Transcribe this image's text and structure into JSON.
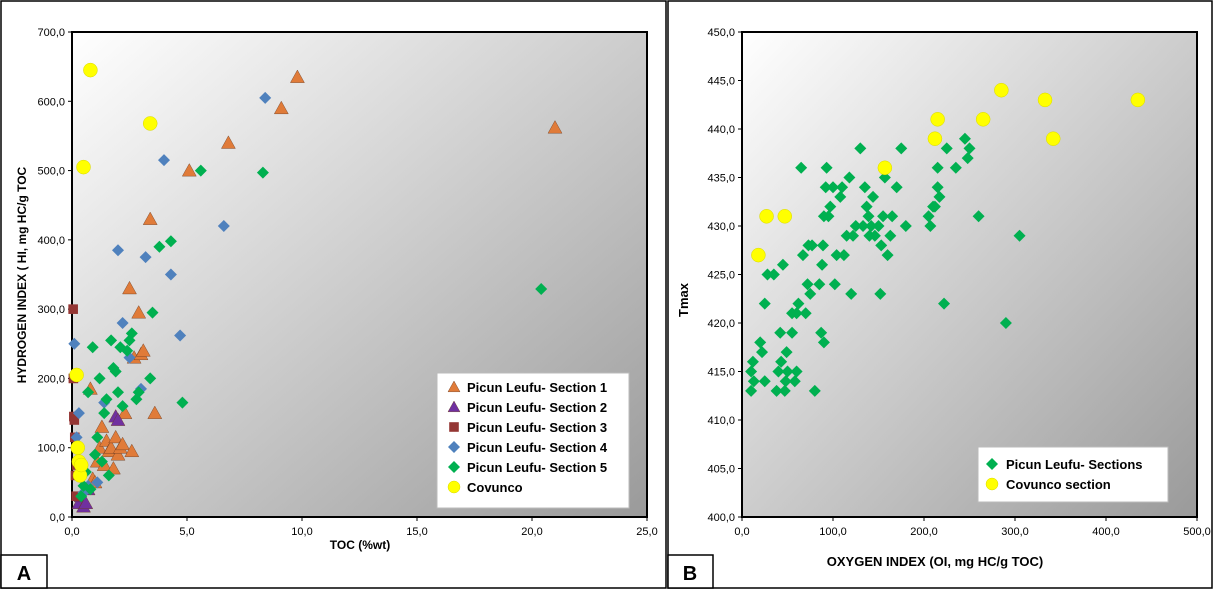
{
  "chart_data": [
    {
      "type": "scatter",
      "panel_label": "A",
      "title": "",
      "xlabel": "TOC (%wt)",
      "ylabel": "HYDROGEN INDEX ( HI, mg HC/g TOC",
      "xlim": [
        0,
        25
      ],
      "ylim": [
        0,
        700
      ],
      "x_ticks": [
        "0,0",
        "5,0",
        "10,0",
        "15,0",
        "20,0",
        "25,0"
      ],
      "y_ticks": [
        "0,0",
        "100,0",
        "200,0",
        "300,0",
        "400,0",
        "500,0",
        "600,0",
        "700,0"
      ],
      "grid": false,
      "legend_position": "bottom-right",
      "series": [
        {
          "name": "Picun Leufu- Section 1",
          "marker": "triangle-up",
          "color": "#E07B39",
          "points": [
            [
              0.8,
              185
            ],
            [
              0.9,
              55
            ],
            [
              1.0,
              50
            ],
            [
              1.1,
              80
            ],
            [
              1.2,
              100
            ],
            [
              1.3,
              130
            ],
            [
              1.4,
              75
            ],
            [
              1.5,
              110
            ],
            [
              1.6,
              95
            ],
            [
              1.7,
              100
            ],
            [
              1.8,
              70
            ],
            [
              1.9,
              115
            ],
            [
              2.0,
              90
            ],
            [
              2.1,
              100
            ],
            [
              2.2,
              105
            ],
            [
              2.3,
              150
            ],
            [
              2.5,
              330
            ],
            [
              2.6,
              95
            ],
            [
              2.7,
              230
            ],
            [
              2.9,
              295
            ],
            [
              3.0,
              235
            ],
            [
              3.1,
              240
            ],
            [
              3.4,
              430
            ],
            [
              3.6,
              150
            ],
            [
              5.1,
              500
            ],
            [
              6.8,
              540
            ],
            [
              9.1,
              590
            ],
            [
              9.8,
              635
            ],
            [
              21.0,
              562
            ]
          ]
        },
        {
          "name": "Picun Leufu- Section 2",
          "marker": "triangle-up",
          "color": "#7030A0",
          "points": [
            [
              0.3,
              20
            ],
            [
              0.4,
              30
            ],
            [
              0.5,
              15
            ],
            [
              0.6,
              20
            ],
            [
              0.7,
              40
            ],
            [
              1.9,
              145
            ],
            [
              2.0,
              140
            ]
          ]
        },
        {
          "name": "Picun Leufu- Section 3",
          "marker": "square",
          "color": "#943634",
          "points": [
            [
              0.05,
              300
            ],
            [
              0.06,
              200
            ],
            [
              0.08,
              145
            ],
            [
              0.1,
              140
            ],
            [
              0.12,
              115
            ],
            [
              0.15,
              60
            ],
            [
              0.18,
              30
            ],
            [
              0.2,
              75
            ],
            [
              0.25,
              100
            ]
          ]
        },
        {
          "name": "Picun Leufu- Section 4",
          "marker": "diamond",
          "color": "#4F81BD",
          "points": [
            [
              0.1,
              250
            ],
            [
              0.2,
              115
            ],
            [
              0.3,
              150
            ],
            [
              0.5,
              35
            ],
            [
              0.7,
              45
            ],
            [
              1.1,
              50
            ],
            [
              1.4,
              165
            ],
            [
              2.0,
              385
            ],
            [
              2.2,
              280
            ],
            [
              2.5,
              230
            ],
            [
              3.0,
              185
            ],
            [
              3.2,
              375
            ],
            [
              4.0,
              515
            ],
            [
              4.3,
              350
            ],
            [
              4.7,
              262
            ],
            [
              6.6,
              420
            ],
            [
              8.4,
              605
            ]
          ]
        },
        {
          "name": "Picun Leufu- Section 5",
          "marker": "diamond",
          "color": "#00B050",
          "points": [
            [
              0.4,
              30
            ],
            [
              0.5,
              45
            ],
            [
              0.6,
              65
            ],
            [
              0.7,
              180
            ],
            [
              0.8,
              40
            ],
            [
              0.9,
              245
            ],
            [
              1.0,
              90
            ],
            [
              1.1,
              115
            ],
            [
              1.2,
              200
            ],
            [
              1.3,
              80
            ],
            [
              1.4,
              150
            ],
            [
              1.5,
              170
            ],
            [
              1.6,
              60
            ],
            [
              1.7,
              255
            ],
            [
              1.8,
              215
            ],
            [
              1.9,
              210
            ],
            [
              2.0,
              180
            ],
            [
              2.1,
              245
            ],
            [
              2.2,
              160
            ],
            [
              2.4,
              240
            ],
            [
              2.5,
              255
            ],
            [
              2.6,
              265
            ],
            [
              2.8,
              170
            ],
            [
              2.9,
              180
            ],
            [
              3.4,
              200
            ],
            [
              3.5,
              295
            ],
            [
              3.8,
              390
            ],
            [
              4.3,
              398
            ],
            [
              4.8,
              165
            ],
            [
              5.6,
              500
            ],
            [
              8.3,
              497
            ],
            [
              20.4,
              329
            ]
          ]
        },
        {
          "name": "Covunco",
          "marker": "circle",
          "color": "#FFFF00",
          "points": [
            [
              0.2,
              205
            ],
            [
              0.25,
              100
            ],
            [
              0.3,
              80
            ],
            [
              0.35,
              60
            ],
            [
              0.4,
              75
            ],
            [
              0.5,
              505
            ],
            [
              0.8,
              645
            ],
            [
              3.4,
              568
            ]
          ]
        }
      ]
    },
    {
      "type": "scatter",
      "panel_label": "B",
      "title": "",
      "xlabel": "OXYGEN INDEX (OI, mg HC/g TOC)",
      "ylabel": "Tmax",
      "xlim": [
        0,
        500
      ],
      "ylim": [
        400,
        450
      ],
      "x_ticks": [
        "0,0",
        "100,0",
        "200,0",
        "300,0",
        "400,0",
        "500,0"
      ],
      "y_ticks": [
        "400,0",
        "405,0",
        "410,0",
        "415,0",
        "420,0",
        "425,0",
        "430,0",
        "435,0",
        "440,0",
        "445,0",
        "450,0"
      ],
      "grid": false,
      "legend_position": "bottom-right",
      "series": [
        {
          "name": "Picun Leufu- Sections",
          "marker": "diamond",
          "color": "#00B050",
          "points": [
            [
              10,
              413
            ],
            [
              10,
              415
            ],
            [
              12,
              416
            ],
            [
              13,
              414
            ],
            [
              20,
              418
            ],
            [
              22,
              417
            ],
            [
              25,
              422
            ],
            [
              25,
              414
            ],
            [
              28,
              425
            ],
            [
              35,
              425
            ],
            [
              38,
              413
            ],
            [
              40,
              415
            ],
            [
              42,
              419
            ],
            [
              43,
              416
            ],
            [
              45,
              426
            ],
            [
              47,
              413
            ],
            [
              48,
              414
            ],
            [
              49,
              417
            ],
            [
              50,
              415
            ],
            [
              55,
              421
            ],
            [
              55,
              419
            ],
            [
              58,
              414
            ],
            [
              60,
              415
            ],
            [
              60,
              421
            ],
            [
              62,
              422
            ],
            [
              65,
              436
            ],
            [
              67,
              427
            ],
            [
              70,
              421
            ],
            [
              72,
              424
            ],
            [
              73,
              428
            ],
            [
              75,
              423
            ],
            [
              77,
              428
            ],
            [
              80,
              413
            ],
            [
              85,
              424
            ],
            [
              87,
              419
            ],
            [
              88,
              426
            ],
            [
              89,
              428
            ],
            [
              90,
              431
            ],
            [
              90,
              418
            ],
            [
              92,
              434
            ],
            [
              93,
              436
            ],
            [
              95,
              431
            ],
            [
              97,
              432
            ],
            [
              100,
              434
            ],
            [
              102,
              424
            ],
            [
              104,
              427
            ],
            [
              108,
              433
            ],
            [
              110,
              434
            ],
            [
              112,
              427
            ],
            [
              115,
              429
            ],
            [
              118,
              435
            ],
            [
              120,
              423
            ],
            [
              122,
              429
            ],
            [
              125,
              430
            ],
            [
              130,
              438
            ],
            [
              133,
              430
            ],
            [
              135,
              434
            ],
            [
              137,
              432
            ],
            [
              139,
              431
            ],
            [
              140,
              429
            ],
            [
              142,
              430
            ],
            [
              144,
              433
            ],
            [
              146,
              429
            ],
            [
              150,
              430
            ],
            [
              152,
              423
            ],
            [
              153,
              428
            ],
            [
              155,
              431
            ],
            [
              157,
              435
            ],
            [
              160,
              427
            ],
            [
              163,
              429
            ],
            [
              165,
              431
            ],
            [
              170,
              434
            ],
            [
              175,
              438
            ],
            [
              180,
              430
            ],
            [
              205,
              431
            ],
            [
              207,
              430
            ],
            [
              210,
              432
            ],
            [
              212,
              432
            ],
            [
              215,
              434
            ],
            [
              215,
              436
            ],
            [
              217,
              433
            ],
            [
              222,
              422
            ],
            [
              225,
              438
            ],
            [
              235,
              436
            ],
            [
              245,
              439
            ],
            [
              248,
              437
            ],
            [
              250,
              438
            ],
            [
              260,
              431
            ],
            [
              290,
              420
            ],
            [
              305,
              429
            ]
          ]
        },
        {
          "name": "Covunco section",
          "marker": "circle",
          "color": "#FFFF00",
          "points": [
            [
              18,
              427
            ],
            [
              27,
              431
            ],
            [
              47,
              431
            ],
            [
              157,
              436
            ],
            [
              212,
              439
            ],
            [
              215,
              441
            ],
            [
              265,
              441
            ],
            [
              285,
              444
            ],
            [
              333,
              443
            ],
            [
              342,
              439
            ],
            [
              435,
              443
            ]
          ]
        }
      ]
    }
  ]
}
